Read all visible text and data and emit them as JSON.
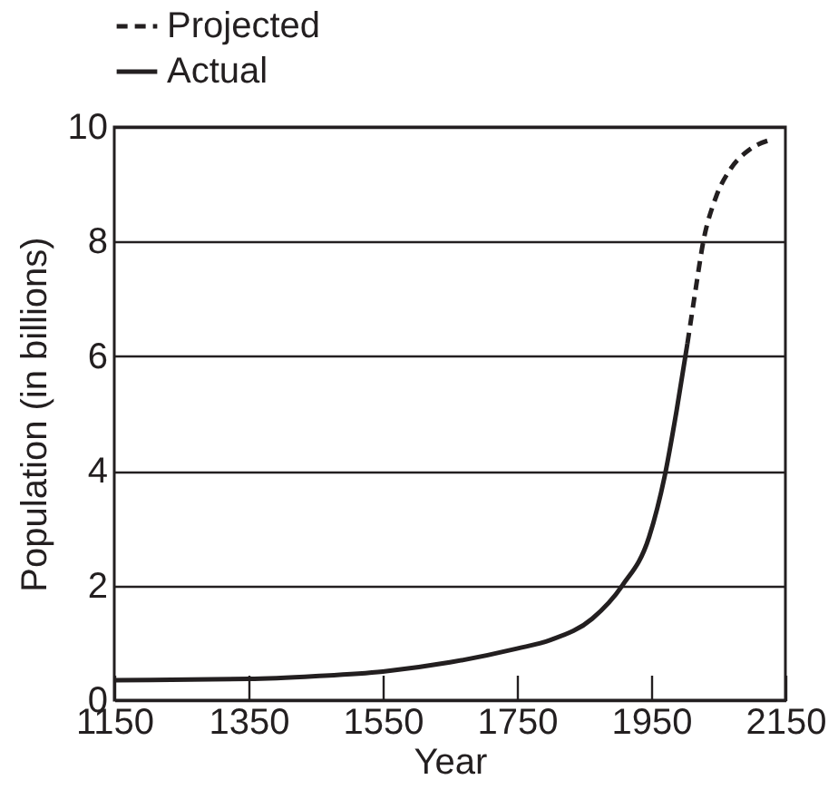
{
  "chart_data": {
    "type": "line",
    "xlabel": "Year",
    "ylabel": "Population (in billions)",
    "xlim": [
      1150,
      2150
    ],
    "xticks": [
      1150,
      1350,
      1550,
      1750,
      1950,
      2150
    ],
    "ylim": [
      0,
      10
    ],
    "yticks": [
      0,
      2,
      4,
      6,
      8,
      10
    ],
    "grid": "y",
    "legend": "top left",
    "series": [
      {
        "name": "Projected",
        "color": "#231f20",
        "line_style": "dashed",
        "x": [
          2004,
          2015,
          2028,
          2046,
          2069,
          2096,
          2132
        ],
        "values": [
          6.22,
          7.07,
          8.02,
          8.76,
          9.28,
          9.6,
          9.79
        ]
      },
      {
        "name": "Actual",
        "color": "#231f20",
        "line_style": "solid",
        "x": [
          1150,
          1350,
          1450,
          1550,
          1650,
          1750,
          1800,
          1862,
          1907,
          1947,
          1970,
          1988,
          2004
        ],
        "values": [
          0.35,
          0.37,
          0.42,
          0.5,
          0.66,
          0.9,
          1.05,
          1.42,
          2.0,
          2.85,
          3.9,
          5.06,
          6.22
        ]
      }
    ]
  }
}
